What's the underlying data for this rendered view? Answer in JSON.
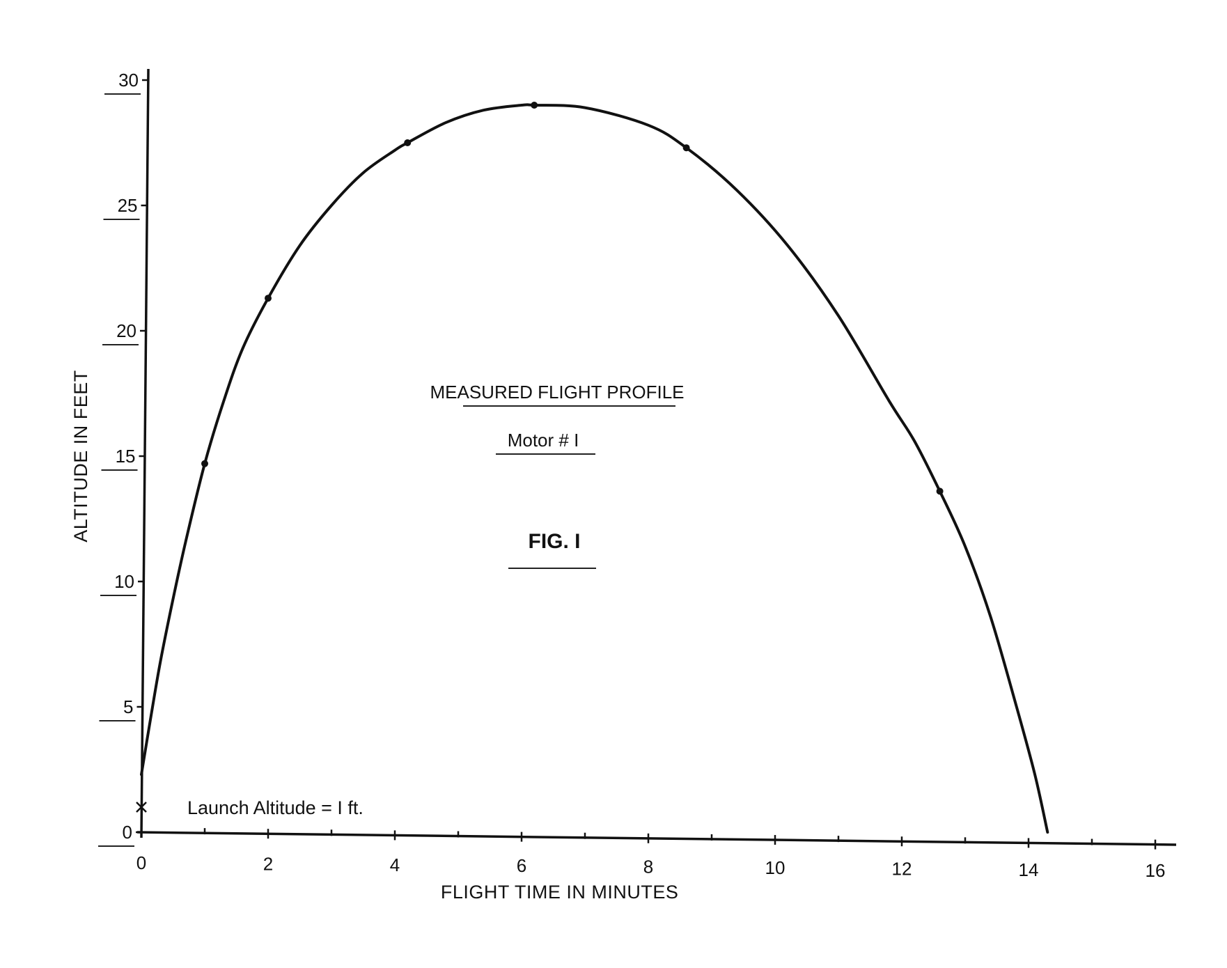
{
  "chart_data": {
    "type": "line",
    "title": "MEASURED FLIGHT PROFILE",
    "subtitle": "Motor # I",
    "figure_label": "FIG. I",
    "xlabel": "FLIGHT TIME IN MINUTES",
    "ylabel": "ALTITUDE IN FEET",
    "xlim": [
      0,
      16
    ],
    "ylim": [
      0,
      30
    ],
    "x_ticks": [
      "0",
      "2",
      "4",
      "6",
      "8",
      "10",
      "12",
      "14",
      "16"
    ],
    "y_ticks": [
      "0",
      "5",
      "10",
      "15",
      "20",
      "25",
      "30"
    ],
    "grid": false,
    "legend": "none",
    "annotation": "Launch Altitude = I ft.",
    "launch_point": {
      "x": 0,
      "y": 1,
      "marker": "x"
    },
    "series": [
      {
        "values_x": [
          0.0,
          0.15,
          0.3,
          0.5,
          0.7,
          1.0,
          1.3,
          1.6,
          2.0,
          2.5,
          3.0,
          3.5,
          4.0,
          4.2,
          4.8,
          5.4,
          6.0,
          6.2,
          7.0,
          8.0,
          8.6,
          9.4,
          10.2,
          11.0,
          11.8,
          12.2,
          12.6,
          13.0,
          13.4,
          13.8,
          14.1,
          14.3
        ],
        "values_y": [
          2.3,
          4.6,
          6.8,
          9.3,
          11.6,
          14.7,
          17.2,
          19.3,
          21.3,
          23.4,
          25.0,
          26.3,
          27.2,
          27.5,
          28.3,
          28.8,
          29.0,
          29.0,
          28.9,
          28.2,
          27.3,
          25.6,
          23.4,
          20.6,
          17.2,
          15.6,
          13.6,
          11.4,
          8.6,
          5.1,
          2.3,
          0.0
        ],
        "markers_x": [
          1.0,
          2.0,
          4.2,
          6.2,
          8.6,
          12.6
        ],
        "markers_y": [
          14.7,
          21.3,
          27.5,
          29.0,
          27.3,
          13.6
        ]
      }
    ]
  }
}
